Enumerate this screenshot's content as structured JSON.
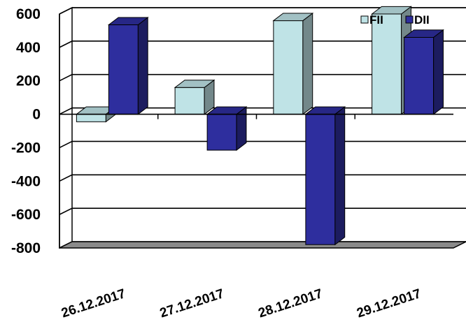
{
  "chart_data": {
    "type": "bar",
    "style": "3d-clustered-column",
    "categories": [
      "26.12.2017",
      "27.12.2017",
      "28.12.2017",
      "29.12.2017"
    ],
    "series": [
      {
        "name": "FII",
        "values": [
          -45,
          160,
          560,
          600
        ],
        "color": "#BFE3E6"
      },
      {
        "name": "DII",
        "values": [
          535,
          -215,
          -780,
          460
        ],
        "color": "#2E2E9E"
      }
    ],
    "y_ticks": [
      600,
      400,
      200,
      0,
      -200,
      -400,
      -600,
      -800
    ],
    "ylim": [
      -800,
      600
    ],
    "grid": true,
    "legend_position": "top-right",
    "title": "",
    "xlabel": "",
    "ylabel": ""
  }
}
